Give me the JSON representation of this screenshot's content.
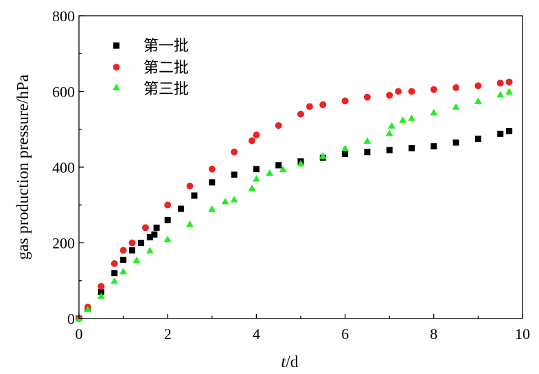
{
  "chart_data": {
    "type": "scatter",
    "xlabel_italic": "t",
    "xlabel_rest": "/d",
    "ylabel": "gas production pressure/hPa",
    "xlim": [
      0,
      10
    ],
    "ylim": [
      0,
      800
    ],
    "xticks": [
      "0",
      "2",
      "4",
      "6",
      "8",
      "10"
    ],
    "yticks": [
      "0",
      "200",
      "400",
      "600",
      "800"
    ],
    "legend_position": "top-left",
    "grid": false,
    "series": [
      {
        "name": "第一批",
        "marker": "square",
        "color": "#000000",
        "x": [
          0,
          0.2,
          0.5,
          0.8,
          1.0,
          1.2,
          1.4,
          1.6,
          1.7,
          1.75,
          2.0,
          2.3,
          2.6,
          3.0,
          3.5,
          4.0,
          4.5,
          5.0,
          5.5,
          6.0,
          6.5,
          7.0,
          7.5,
          8.0,
          8.5,
          9.0,
          9.5,
          9.7
        ],
        "y": [
          0,
          25,
          70,
          120,
          155,
          180,
          200,
          215,
          222,
          240,
          260,
          290,
          325,
          360,
          380,
          395,
          405,
          415,
          425,
          435,
          440,
          445,
          450,
          455,
          465,
          475,
          488,
          495
        ]
      },
      {
        "name": "第二批",
        "marker": "circle",
        "color": "#ee2222",
        "x": [
          0,
          0.2,
          0.5,
          0.8,
          1.0,
          1.2,
          1.5,
          2.0,
          2.5,
          3.0,
          3.5,
          3.9,
          4.0,
          4.5,
          5.0,
          5.2,
          5.5,
          6.0,
          6.5,
          7.0,
          7.2,
          7.5,
          8.0,
          8.5,
          9.0,
          9.5,
          9.7
        ],
        "y": [
          0,
          30,
          85,
          145,
          180,
          200,
          240,
          300,
          350,
          395,
          440,
          470,
          485,
          510,
          540,
          560,
          565,
          575,
          585,
          590,
          600,
          600,
          605,
          610,
          615,
          622,
          625
        ]
      },
      {
        "name": "第三批",
        "marker": "triangle",
        "color": "#22ee22",
        "x": [
          0,
          0.2,
          0.5,
          0.8,
          1.0,
          1.3,
          1.6,
          2.0,
          2.5,
          3.0,
          3.3,
          3.5,
          3.9,
          4.0,
          4.3,
          4.6,
          5.0,
          5.5,
          6.0,
          6.5,
          7.0,
          7.05,
          7.3,
          7.5,
          8.0,
          8.5,
          9.0,
          9.5,
          9.7
        ],
        "y": [
          0,
          25,
          60,
          100,
          125,
          155,
          180,
          210,
          250,
          290,
          310,
          315,
          345,
          370,
          385,
          395,
          410,
          430,
          450,
          470,
          490,
          510,
          525,
          530,
          545,
          560,
          575,
          592,
          600
        ]
      }
    ]
  }
}
